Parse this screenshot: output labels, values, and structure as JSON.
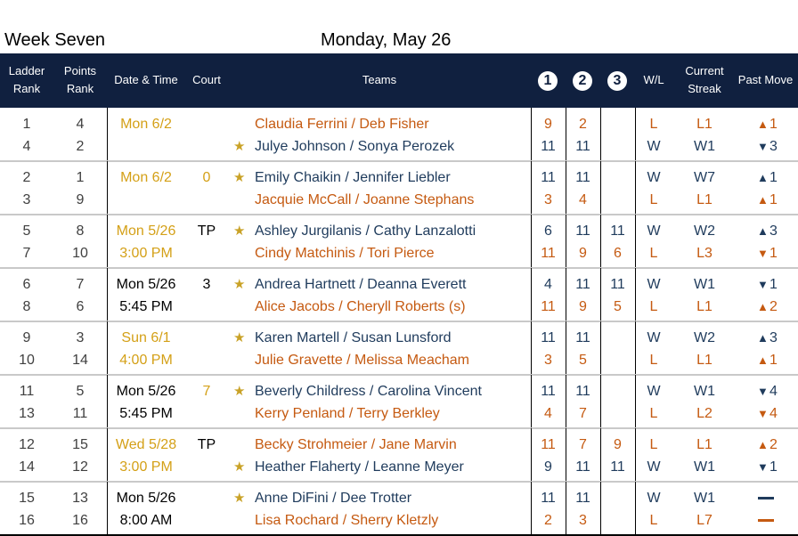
{
  "title_week": "Week Seven",
  "title_date": "Monday, May 26",
  "headers": {
    "ladder_rank": [
      "Ladder",
      "Rank"
    ],
    "points_rank": [
      "Points",
      "Rank"
    ],
    "date_time": "Date & Time",
    "court": "Court",
    "teams": "Teams",
    "g1": "1",
    "g2": "2",
    "g3": "3",
    "wl": "W/L",
    "streak": [
      "Current",
      "Streak"
    ],
    "past_move": "Past Move"
  },
  "colors": {
    "header_bg": "#10203f",
    "winner_blue": "#1f3b5c",
    "loser_orange": "#c55a11",
    "gold": "#d4a017"
  },
  "matches": [
    {
      "date": "Mon 6/2",
      "time": "",
      "court": "",
      "date_color": "gold",
      "court_color": "black",
      "teams": [
        {
          "ladder": "1",
          "points": "4",
          "star": false,
          "names": "Claudia Ferrini / Deb Fisher",
          "color": "orange",
          "g1": "9",
          "g2": "2",
          "g3": "",
          "wl": "L",
          "streak": "L1",
          "move": "up",
          "move_n": "1"
        },
        {
          "ladder": "4",
          "points": "2",
          "star": true,
          "names": "Julye Johnson / Sonya Perozek",
          "color": "blue",
          "g1": "11",
          "g2": "11",
          "g3": "",
          "wl": "W",
          "streak": "W1",
          "move": "down",
          "move_n": "3"
        }
      ]
    },
    {
      "date": "Mon 6/2",
      "time": "",
      "court": "0",
      "date_color": "gold",
      "court_color": "gold",
      "teams": [
        {
          "ladder": "2",
          "points": "1",
          "star": true,
          "names": "Emily Chaikin / Jennifer Liebler",
          "color": "blue",
          "g1": "11",
          "g2": "11",
          "g3": "",
          "wl": "W",
          "streak": "W7",
          "move": "up",
          "move_n": "1"
        },
        {
          "ladder": "3",
          "points": "9",
          "star": false,
          "names": "Jacquie McCall / Joanne Stephans",
          "color": "orange",
          "g1": "3",
          "g2": "4",
          "g3": "",
          "wl": "L",
          "streak": "L1",
          "move": "up",
          "move_n": "1"
        }
      ]
    },
    {
      "date": "Mon 5/26",
      "time": "3:00 PM",
      "court": "TP",
      "date_color": "gold",
      "court_color": "black",
      "teams": [
        {
          "ladder": "5",
          "points": "8",
          "star": true,
          "names": "Ashley Jurgilanis / Cathy Lanzalotti",
          "color": "blue",
          "g1": "6",
          "g2": "11",
          "g3": "11",
          "wl": "W",
          "streak": "W2",
          "move": "up",
          "move_n": "3"
        },
        {
          "ladder": "7",
          "points": "10",
          "star": false,
          "names": "Cindy Matchinis / Tori Pierce",
          "color": "orange",
          "g1": "11",
          "g2": "9",
          "g3": "6",
          "wl": "L",
          "streak": "L3",
          "move": "down",
          "move_n": "1"
        }
      ]
    },
    {
      "date": "Mon 5/26",
      "time": "5:45 PM",
      "court": "3",
      "date_color": "black",
      "court_color": "black",
      "teams": [
        {
          "ladder": "6",
          "points": "7",
          "star": true,
          "names": "Andrea Hartnett / Deanna Everett",
          "color": "blue",
          "g1": "4",
          "g2": "11",
          "g3": "11",
          "wl": "W",
          "streak": "W1",
          "move": "down",
          "move_n": "1"
        },
        {
          "ladder": "8",
          "points": "6",
          "star": false,
          "names": "Alice Jacobs / Cheryll Roberts (s)",
          "color": "orange",
          "g1": "11",
          "g2": "9",
          "g3": "5",
          "wl": "L",
          "streak": "L1",
          "move": "up",
          "move_n": "2"
        }
      ]
    },
    {
      "date": "Sun 6/1",
      "time": "4:00 PM",
      "court": "",
      "date_color": "gold",
      "court_color": "black",
      "teams": [
        {
          "ladder": "9",
          "points": "3",
          "star": true,
          "names": "Karen Martell / Susan Lunsford",
          "color": "blue",
          "g1": "11",
          "g2": "11",
          "g3": "",
          "wl": "W",
          "streak": "W2",
          "move": "up",
          "move_n": "3"
        },
        {
          "ladder": "10",
          "points": "14",
          "star": false,
          "names": "Julie Gravette / Melissa Meacham",
          "color": "orange",
          "g1": "3",
          "g2": "5",
          "g3": "",
          "wl": "L",
          "streak": "L1",
          "move": "up",
          "move_n": "1"
        }
      ]
    },
    {
      "date": "Mon 5/26",
      "time": "5:45 PM",
      "court": "7",
      "date_color": "black",
      "court_color": "gold",
      "teams": [
        {
          "ladder": "11",
          "points": "5",
          "star": true,
          "names": "Beverly Childress / Carolina Vincent",
          "color": "blue",
          "g1": "11",
          "g2": "11",
          "g3": "",
          "wl": "W",
          "streak": "W1",
          "move": "down",
          "move_n": "4"
        },
        {
          "ladder": "13",
          "points": "11",
          "star": false,
          "names": "Kerry Penland / Terry Berkley",
          "color": "orange",
          "g1": "4",
          "g2": "7",
          "g3": "",
          "wl": "L",
          "streak": "L2",
          "move": "down",
          "move_n": "4"
        }
      ]
    },
    {
      "date": "Wed 5/28",
      "time": "3:00 PM",
      "court": "TP",
      "date_color": "gold",
      "court_color": "black",
      "teams": [
        {
          "ladder": "12",
          "points": "15",
          "star": false,
          "names": "Becky Strohmeier / Jane Marvin",
          "color": "orange",
          "g1": "11",
          "g2": "7",
          "g3": "9",
          "wl": "L",
          "streak": "L1",
          "move": "up",
          "move_n": "2"
        },
        {
          "ladder": "14",
          "points": "12",
          "star": true,
          "names": "Heather Flaherty / Leanne Meyer",
          "color": "blue",
          "g1": "9",
          "g2": "11",
          "g3": "11",
          "wl": "W",
          "streak": "W1",
          "move": "down",
          "move_n": "1"
        }
      ]
    },
    {
      "date": "Mon 5/26",
      "time": "8:00 AM",
      "court": "",
      "date_color": "black",
      "court_color": "black",
      "teams": [
        {
          "ladder": "15",
          "points": "13",
          "star": true,
          "names": "Anne DiFini / Dee Trotter",
          "color": "blue",
          "g1": "11",
          "g2": "11",
          "g3": "",
          "wl": "W",
          "streak": "W1",
          "move": "none",
          "move_n": ""
        },
        {
          "ladder": "16",
          "points": "16",
          "star": false,
          "names": "Lisa Rochard / Sherry Kletzly",
          "color": "orange",
          "g1": "2",
          "g2": "3",
          "g3": "",
          "wl": "L",
          "streak": "L7",
          "move": "none",
          "move_n": ""
        }
      ]
    }
  ]
}
